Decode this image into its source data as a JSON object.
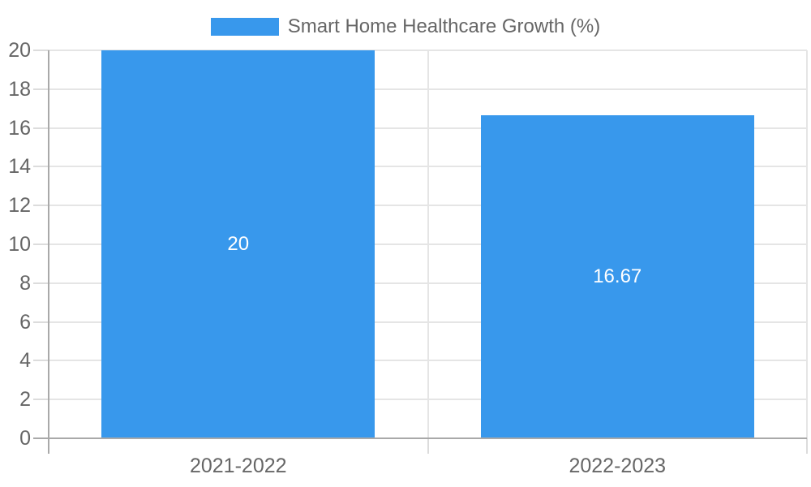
{
  "chart_data": {
    "type": "bar",
    "title": "Smart Home Healthcare Growth (%)",
    "categories": [
      "2021-2022",
      "2022-2023"
    ],
    "values": [
      20,
      16.67
    ],
    "bar_labels": [
      "20",
      "16.67"
    ],
    "xlabel": "",
    "ylabel": "",
    "ylim": [
      0,
      20
    ],
    "y_ticks": [
      0,
      2,
      4,
      6,
      8,
      10,
      12,
      14,
      16,
      18,
      20
    ],
    "grid": true,
    "legend_position": "top-center",
    "colors": {
      "bar": "#3898ec",
      "grid": "#e5e5e5",
      "tick": "#dcdcdc",
      "axis": "#a9a9a9",
      "label": "#666666",
      "legend_text": "#666666",
      "bar_label": "#ffffff",
      "background": "#ffffff"
    }
  }
}
